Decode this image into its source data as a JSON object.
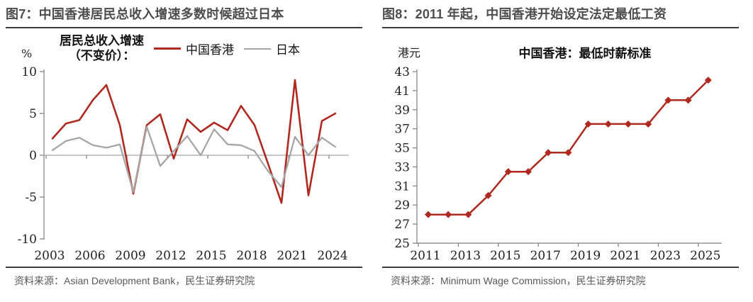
{
  "colors": {
    "accent_red": "#B02920",
    "line_gray": "#A6A6A6",
    "axis_gray": "#7F7F7F",
    "heading_text": "#4D4D4F",
    "rule_dark": "#3B3B3B",
    "source_text": "#595959"
  },
  "figures": [
    {
      "heading": "图7：中国香港居民总收入增速多数时候超过日本",
      "source": "资料来源：Asian Development Bank，民生证券研究院"
    },
    {
      "heading": "图8：2011 年起，中国香港开始设定法定最低工资",
      "source": "资料来源：Minimum Wage Commission，民生证券研究院"
    }
  ],
  "chart_data": [
    {
      "type": "line",
      "title": "居民总收入增速（不变价）：",
      "legend_title_lines": [
        "居民总收入增速",
        "（不变价）："
      ],
      "unit_label": "%",
      "x": [
        2003,
        2004,
        2005,
        2006,
        2007,
        2008,
        2009,
        2010,
        2011,
        2012,
        2013,
        2014,
        2015,
        2016,
        2017,
        2018,
        2019,
        2020,
        2021,
        2022,
        2023,
        2024
      ],
      "series": [
        {
          "name": "中国香港",
          "color": "#B02920",
          "width": 2.6,
          "values": [
            2.0,
            3.8,
            4.2,
            6.6,
            8.4,
            3.6,
            -4.6,
            3.6,
            4.9,
            -0.4,
            4.3,
            2.8,
            3.9,
            3.0,
            5.9,
            3.6,
            -1.0,
            -5.7,
            9.0,
            -4.8,
            4.1,
            5.0
          ]
        },
        {
          "name": "日本",
          "color": "#A6A6A6",
          "width": 2.3,
          "values": [
            0.6,
            1.7,
            2.1,
            1.2,
            0.9,
            1.3,
            -4.4,
            3.4,
            -1.3,
            0.5,
            2.3,
            0.0,
            3.1,
            1.3,
            1.2,
            0.5,
            -1.9,
            -3.8,
            2.2,
            0.0,
            2.1,
            1.0
          ]
        }
      ],
      "ylim": [
        -10,
        10
      ],
      "yticks": [
        10,
        5,
        0,
        -5,
        -10
      ],
      "xticks": [
        2003,
        2006,
        2009,
        2012,
        2015,
        2018,
        2021,
        2024
      ],
      "legend_position": "top",
      "grid": false
    },
    {
      "type": "line",
      "title": "中国香港：最低时薪标准",
      "unit_label": "港元",
      "x": [
        2011,
        2012,
        2013,
        2014,
        2015,
        2016,
        2017,
        2018,
        2019,
        2020,
        2021,
        2022,
        2023,
        2024,
        2025
      ],
      "series": [
        {
          "name": "中国香港：最低时薪标准",
          "color": "#B02920",
          "width": 2.5,
          "marker": "diamond",
          "values": [
            28,
            28,
            28,
            30,
            32.5,
            32.5,
            34.5,
            34.5,
            37.5,
            37.5,
            37.5,
            37.5,
            40,
            40,
            42.1
          ]
        }
      ],
      "ylim": [
        25,
        43
      ],
      "yticks": [
        43,
        41,
        39,
        37,
        35,
        33,
        31,
        29,
        27,
        25
      ],
      "xticks": [
        2011,
        2013,
        2015,
        2017,
        2019,
        2021,
        2023,
        2025
      ],
      "legend_position": "none",
      "grid": false
    }
  ]
}
